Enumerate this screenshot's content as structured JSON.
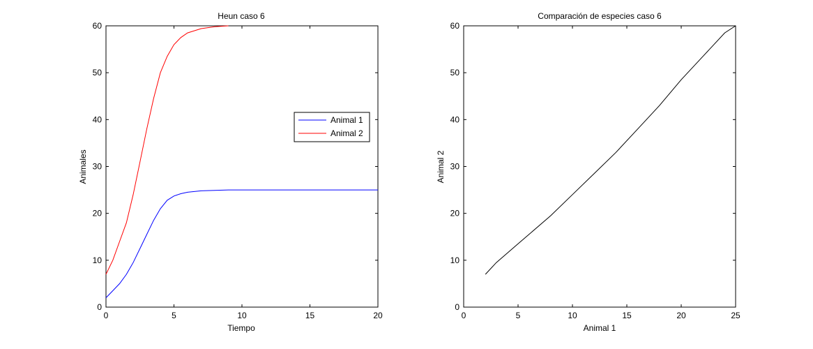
{
  "figure": {
    "left": {
      "title": "Heun caso 6",
      "xlabel": "Tiempo",
      "ylabel": "Animales",
      "xticks": [
        "0",
        "5",
        "10",
        "15",
        "20"
      ],
      "yticks": [
        "0",
        "10",
        "20",
        "30",
        "40",
        "50",
        "60"
      ],
      "legend": [
        "Animal 1",
        "Animal 2"
      ]
    },
    "right": {
      "title": "Comparación de especies caso 6",
      "xlabel": "Animal 1",
      "ylabel": "Animal 2",
      "xticks": [
        "0",
        "5",
        "10",
        "15",
        "20",
        "25"
      ],
      "yticks": [
        "0",
        "10",
        "20",
        "30",
        "40",
        "50",
        "60"
      ]
    }
  },
  "chart_data": [
    {
      "type": "line",
      "title": "Heun caso 6",
      "xlabel": "Tiempo",
      "ylabel": "Animales",
      "xlim": [
        0,
        20
      ],
      "ylim": [
        0,
        60
      ],
      "grid": false,
      "legend_position": "right",
      "series": [
        {
          "name": "Animal 1",
          "color": "#0000ff",
          "x": [
            0,
            0.5,
            1,
            1.5,
            2,
            2.5,
            3,
            3.5,
            4,
            4.5,
            5,
            5.5,
            6,
            7,
            8,
            9,
            10,
            12,
            14,
            16,
            18,
            20
          ],
          "y": [
            2,
            3.5,
            5,
            7,
            9.5,
            12.5,
            15.5,
            18.5,
            21,
            22.8,
            23.7,
            24.2,
            24.5,
            24.8,
            24.9,
            25,
            25,
            25,
            25,
            25,
            25,
            25
          ]
        },
        {
          "name": "Animal 2",
          "color": "#ff0000",
          "x": [
            0,
            0.5,
            1,
            1.5,
            2,
            2.5,
            3,
            3.5,
            4,
            4.5,
            5,
            5.5,
            6,
            7,
            8,
            9
          ],
          "y": [
            7,
            10,
            14,
            18,
            24,
            31,
            38,
            44.5,
            50,
            53.5,
            56,
            57.5,
            58.5,
            59.4,
            59.8,
            60
          ]
        }
      ]
    },
    {
      "type": "line",
      "title": "Comparación de especies caso 6",
      "xlabel": "Animal 1",
      "ylabel": "Animal 2",
      "xlim": [
        0,
        25
      ],
      "ylim": [
        0,
        60
      ],
      "grid": false,
      "series": [
        {
          "color": "#000000",
          "x": [
            2,
            3,
            4,
            5,
            6,
            8,
            10,
            12,
            14,
            16,
            18,
            20,
            22,
            24,
            25
          ],
          "y": [
            7,
            9.5,
            11.5,
            13.5,
            15.5,
            19.5,
            24,
            28.5,
            33,
            38,
            43,
            48.5,
            53.5,
            58.5,
            60
          ]
        }
      ]
    }
  ]
}
